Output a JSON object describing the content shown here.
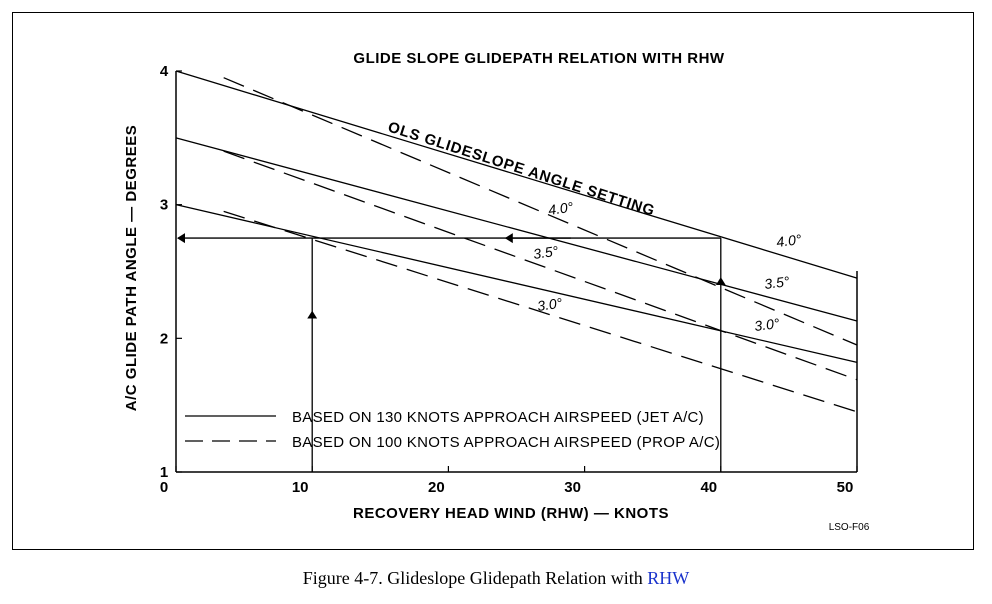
{
  "chart_data": {
    "type": "line",
    "title": "GLIDE SLOPE GLIDEPATH RELATION WITH RHW",
    "xlabel": "RECOVERY HEAD WIND (RHW) — KNOTS",
    "ylabel": "A/C GLIDE PATH ANGLE — DEGREES",
    "xlim": [
      0,
      50
    ],
    "ylim": [
      1,
      4
    ],
    "x_ticks": [
      "0",
      "10",
      "20",
      "30",
      "40",
      "50"
    ],
    "y_ticks": [
      "1",
      "2",
      "3",
      "4"
    ],
    "grid": false,
    "curve_title": "OLS GLIDESLOPE ANGLE SETTING",
    "series": [
      {
        "name": "4.0°",
        "style": "solid",
        "x": [
          0,
          50
        ],
        "y": [
          4.0,
          2.45
        ]
      },
      {
        "name": "3.5°",
        "style": "solid",
        "x": [
          0,
          50
        ],
        "y": [
          3.5,
          2.13
        ]
      },
      {
        "name": "3.0°",
        "style": "solid",
        "x": [
          0,
          50
        ],
        "y": [
          3.0,
          1.82
        ]
      },
      {
        "name": "4.0°",
        "style": "dashed",
        "x": [
          3.5,
          50
        ],
        "y": [
          3.95,
          1.95
        ]
      },
      {
        "name": "3.5°",
        "style": "dashed",
        "x": [
          3.5,
          50
        ],
        "y": [
          3.4,
          1.69
        ]
      },
      {
        "name": "3.0°",
        "style": "dashed",
        "x": [
          3.5,
          50
        ],
        "y": [
          2.95,
          1.45
        ]
      }
    ],
    "series_labels": {
      "jet": [
        "4.0°",
        "3.5°",
        "3.0°"
      ],
      "prop": [
        "4.0°",
        "3.5°",
        "3.0°"
      ]
    },
    "example_construction": {
      "horizontal_y": 2.75,
      "vertical_x": [
        10,
        40
      ],
      "horizontal_x_range": [
        0,
        40
      ]
    },
    "legend": [
      {
        "style": "solid",
        "label": "BASED ON 130 KNOTS APPROACH AIRSPEED (JET A/C)"
      },
      {
        "style": "dashed",
        "label": "BASED ON 100 KNOTS APPROACH AIRSPEED (PROP A/C)"
      }
    ],
    "legend_placement": "bottom-left",
    "figure_id": "LSO-F06"
  },
  "caption": {
    "text": "Figure 4-7.  Glideslope Glidepath Relation with ",
    "link": "RHW"
  }
}
